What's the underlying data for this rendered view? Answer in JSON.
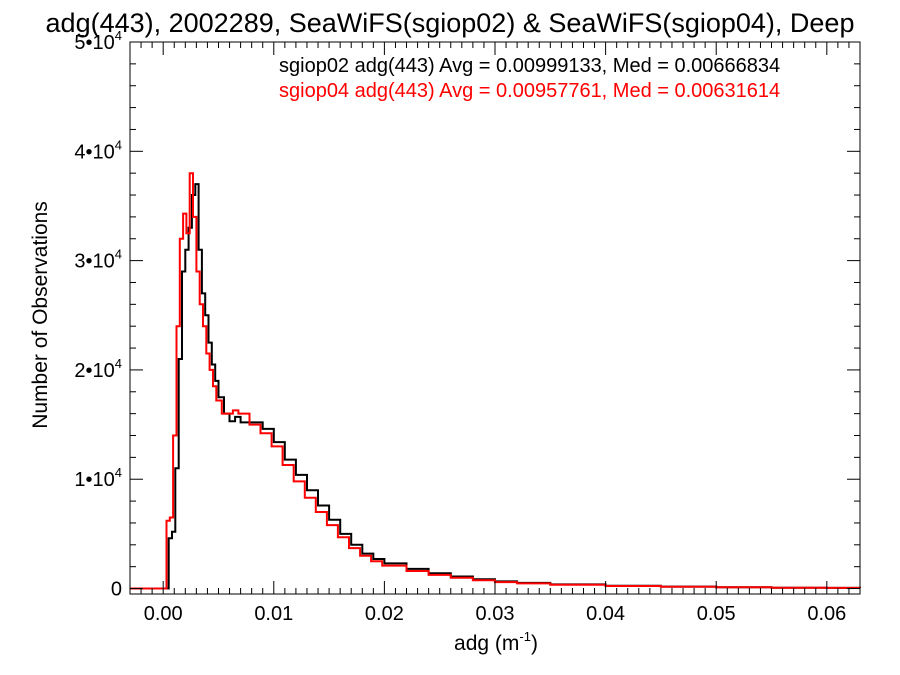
{
  "chart_data": {
    "type": "line",
    "title": "adg(443), 2002289, SeaWiFS(sgiop02) & SeaWiFS(sgiop04), Deep",
    "xlabel": "adg (m",
    "xlabel_sup": "-1",
    "xlabel_close": ")",
    "ylabel": "Number of Observations",
    "xlim": [
      -0.003,
      0.063
    ],
    "ylim": [
      -500,
      50000
    ],
    "grid": false,
    "legend_placement": "top-right",
    "x_ticks": [
      {
        "value": 0.0,
        "label": "0.00"
      },
      {
        "value": 0.01,
        "label": "0.01"
      },
      {
        "value": 0.02,
        "label": "0.02"
      },
      {
        "value": 0.03,
        "label": "0.03"
      },
      {
        "value": 0.04,
        "label": "0.04"
      },
      {
        "value": 0.05,
        "label": "0.05"
      },
      {
        "value": 0.06,
        "label": "0.06"
      }
    ],
    "y_ticks": [
      {
        "value": 0,
        "base": "0",
        "exp": ""
      },
      {
        "value": 10000,
        "base": "1•10",
        "exp": "4"
      },
      {
        "value": 20000,
        "base": "2•10",
        "exp": "4"
      },
      {
        "value": 30000,
        "base": "3•10",
        "exp": "4"
      },
      {
        "value": 40000,
        "base": "4•10",
        "exp": "4"
      },
      {
        "value": 50000,
        "base": "5•10",
        "exp": "4"
      }
    ],
    "series": [
      {
        "name": "sgiop02 adg(443) Avg = 0.00999133, Med = 0.00666834",
        "color": "#000000",
        "points": [
          [
            -0.003,
            0
          ],
          [
            0.0002,
            0
          ],
          [
            0.0005,
            4600
          ],
          [
            0.0008,
            5200
          ],
          [
            0.0011,
            11000
          ],
          [
            0.0014,
            21000
          ],
          [
            0.0017,
            29000
          ],
          [
            0.002,
            31000
          ],
          [
            0.0023,
            33000
          ],
          [
            0.0026,
            36000
          ],
          [
            0.0029,
            37000
          ],
          [
            0.0032,
            31000
          ],
          [
            0.0035,
            27000
          ],
          [
            0.0038,
            25000
          ],
          [
            0.0041,
            22500
          ],
          [
            0.0044,
            20500
          ],
          [
            0.0047,
            19000
          ],
          [
            0.005,
            17500
          ],
          [
            0.0055,
            16000
          ],
          [
            0.006,
            15300
          ],
          [
            0.0065,
            15700
          ],
          [
            0.007,
            15200
          ],
          [
            0.008,
            15200
          ],
          [
            0.009,
            14600
          ],
          [
            0.01,
            13400
          ],
          [
            0.011,
            11800
          ],
          [
            0.012,
            10400
          ],
          [
            0.013,
            9000
          ],
          [
            0.014,
            7600
          ],
          [
            0.015,
            6300
          ],
          [
            0.016,
            5000
          ],
          [
            0.017,
            4000
          ],
          [
            0.018,
            3200
          ],
          [
            0.019,
            2700
          ],
          [
            0.02,
            2300
          ],
          [
            0.022,
            1800
          ],
          [
            0.024,
            1400
          ],
          [
            0.026,
            1100
          ],
          [
            0.028,
            850
          ],
          [
            0.03,
            650
          ],
          [
            0.032,
            520
          ],
          [
            0.035,
            380
          ],
          [
            0.04,
            260
          ],
          [
            0.045,
            180
          ],
          [
            0.05,
            120
          ],
          [
            0.055,
            80
          ],
          [
            0.06,
            60
          ],
          [
            0.063,
            50
          ]
        ]
      },
      {
        "name": "sgiop04 adg(443) Avg = 0.00957761, Med = 0.00631614",
        "color": "#ff0000",
        "points": [
          [
            -0.003,
            0
          ],
          [
            0.0,
            0
          ],
          [
            0.0003,
            6200
          ],
          [
            0.0006,
            6500
          ],
          [
            0.0009,
            14000
          ],
          [
            0.0012,
            24000
          ],
          [
            0.0015,
            32000
          ],
          [
            0.0018,
            34300
          ],
          [
            0.0021,
            32500
          ],
          [
            0.0024,
            38000
          ],
          [
            0.0027,
            34000
          ],
          [
            0.003,
            29000
          ],
          [
            0.0033,
            26000
          ],
          [
            0.0036,
            24000
          ],
          [
            0.0039,
            21500
          ],
          [
            0.0042,
            20000
          ],
          [
            0.0045,
            18500
          ],
          [
            0.0048,
            17200
          ],
          [
            0.0053,
            16000
          ],
          [
            0.0058,
            16000
          ],
          [
            0.0063,
            16300
          ],
          [
            0.0068,
            16000
          ],
          [
            0.0078,
            15000
          ],
          [
            0.0088,
            14200
          ],
          [
            0.0098,
            13000
          ],
          [
            0.0108,
            11300
          ],
          [
            0.0118,
            9800
          ],
          [
            0.0128,
            8300
          ],
          [
            0.0138,
            7000
          ],
          [
            0.0148,
            5800
          ],
          [
            0.0158,
            4700
          ],
          [
            0.0168,
            3700
          ],
          [
            0.0178,
            3000
          ],
          [
            0.0188,
            2500
          ],
          [
            0.0198,
            2100
          ],
          [
            0.022,
            1600
          ],
          [
            0.024,
            1250
          ],
          [
            0.026,
            980
          ],
          [
            0.028,
            760
          ],
          [
            0.03,
            590
          ],
          [
            0.032,
            470
          ],
          [
            0.035,
            340
          ],
          [
            0.04,
            230
          ],
          [
            0.045,
            160
          ],
          [
            0.05,
            110
          ],
          [
            0.055,
            75
          ],
          [
            0.06,
            55
          ],
          [
            0.063,
            45
          ]
        ]
      }
    ]
  }
}
